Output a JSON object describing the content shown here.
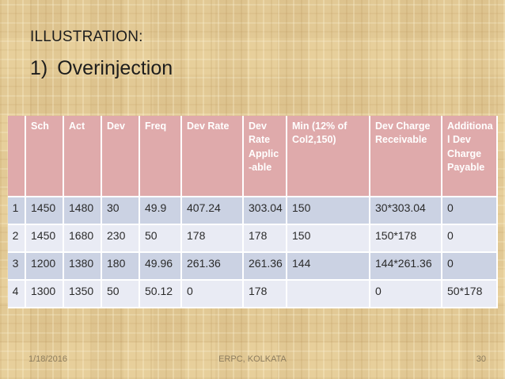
{
  "slide": {
    "title": "ILLUSTRATION:",
    "subtitle_number": "1)",
    "subtitle_text": "Overinjection"
  },
  "table": {
    "columns": [
      "",
      "Sch",
      "Act",
      "Dev",
      "Freq",
      "Dev Rate",
      "Dev Rate Applic -able",
      "Min (12% of Col2,150)",
      "Dev Charge Receivable",
      "Additional Dev Charge Payable"
    ],
    "rows": [
      [
        "1",
        "1450",
        "1480",
        "30",
        "49.9",
        "407.24",
        "303.04",
        "150",
        "30*303.04",
        "0"
      ],
      [
        "2",
        "1450",
        "1680",
        "230",
        "50",
        "178",
        "178",
        "150",
        "150*178",
        "0"
      ],
      [
        "3",
        "1200",
        "1380",
        "180",
        "49.96",
        "261.36",
        "261.36",
        "144",
        "144*261.36",
        "0"
      ],
      [
        "4",
        "1300",
        "1350",
        "50",
        "50.12",
        "0",
        "178",
        "",
        "0",
        "50*178"
      ]
    ]
  },
  "footer": {
    "date": "1/18/2016",
    "center": "ERPC, KOLKATA",
    "page": "30"
  },
  "colors": {
    "header_bg": "#dfaaab",
    "row_odd": "#cbd2e3",
    "row_even": "#e9ebf4",
    "background": "#e7cf9b",
    "header_text": "#ffffff",
    "body_text": "#2b2b2b",
    "footer_text": "#8d7d5f"
  }
}
